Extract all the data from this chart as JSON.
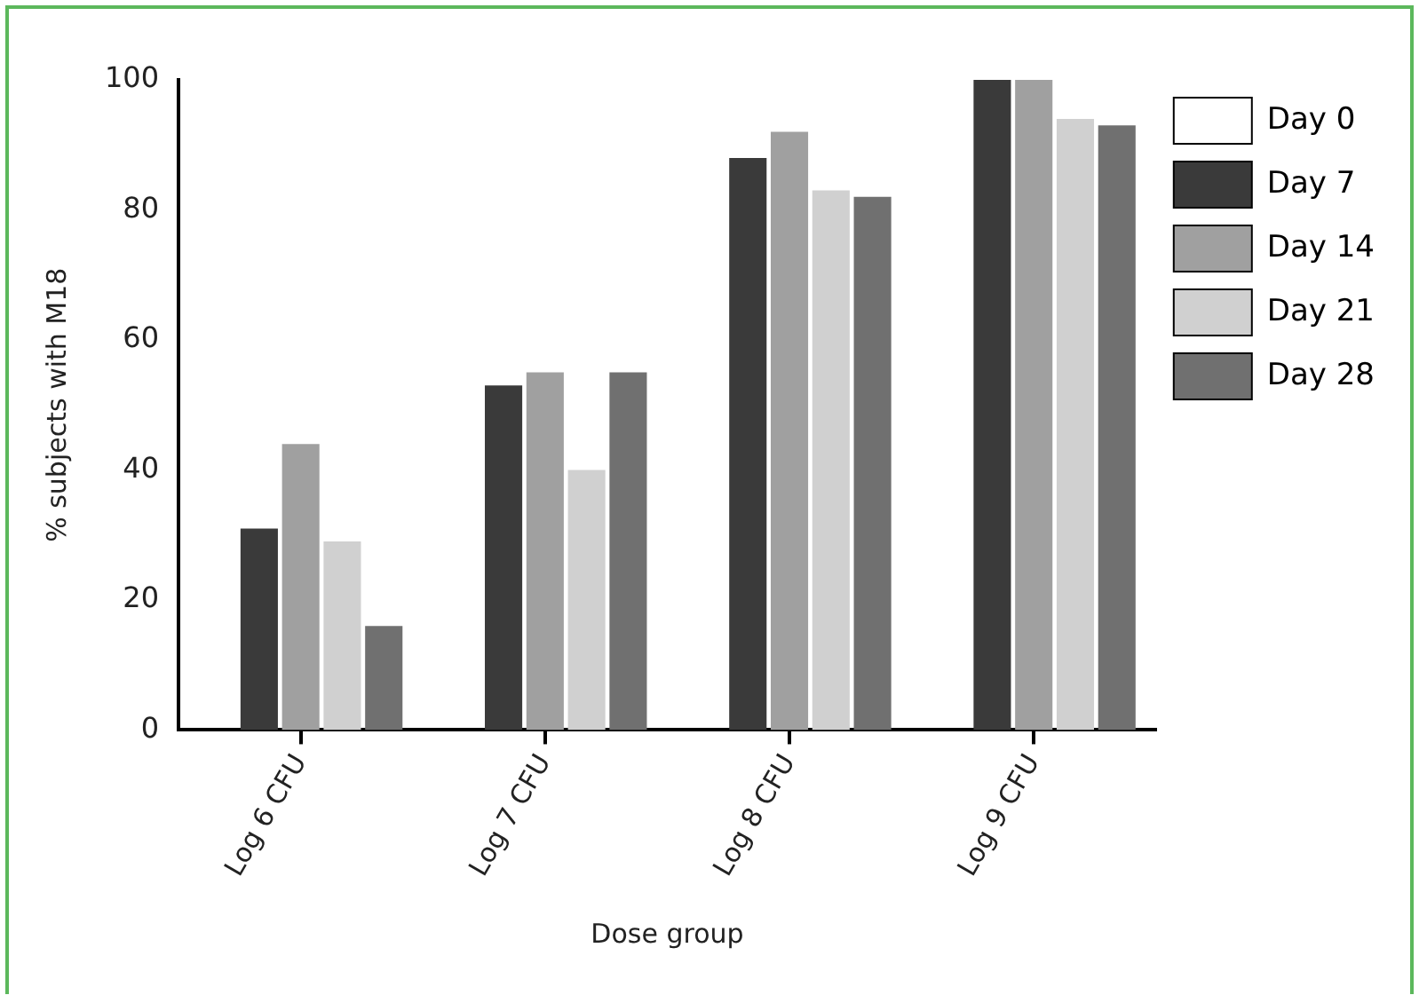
{
  "chart_data": {
    "type": "bar",
    "xlabel": "Dose group",
    "ylabel": "% subjects with M18",
    "categories": [
      "Log 6 CFU",
      "Log 7 CFU",
      "Log 8 CFU",
      "Log 9 CFU"
    ],
    "series": [
      {
        "name": "Day 0",
        "color": "#ffffff",
        "values": [
          0,
          0,
          0,
          0
        ]
      },
      {
        "name": "Day 7",
        "color": "#3a3a3a",
        "values": [
          31,
          53,
          88,
          100
        ]
      },
      {
        "name": "Day 14",
        "color": "#a0a0a0",
        "values": [
          44,
          55,
          92,
          100
        ]
      },
      {
        "name": "Day 21",
        "color": "#d0d0d0",
        "values": [
          29,
          40,
          83,
          94
        ]
      },
      {
        "name": "Day 28",
        "color": "#707070",
        "values": [
          16,
          55,
          82,
          93
        ]
      }
    ],
    "ylim": [
      0,
      100
    ],
    "yticks": [
      0,
      20,
      40,
      60,
      80,
      100
    ],
    "grid": false,
    "legend": "top right"
  }
}
